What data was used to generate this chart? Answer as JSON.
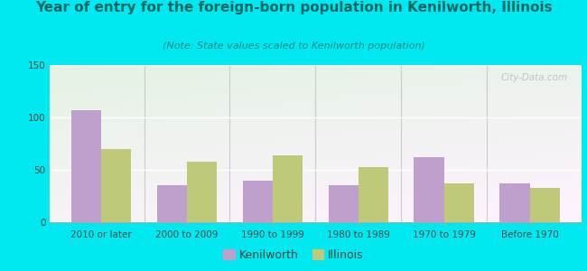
{
  "title": "Year of entry for the foreign-born population in Kenilworth, Illinois",
  "subtitle": "(Note: State values scaled to Kenilworth population)",
  "categories": [
    "2010 or later",
    "2000 to 2009",
    "1990 to 1999",
    "1980 to 1989",
    "1970 to 1979",
    "Before 1970"
  ],
  "kenilworth_values": [
    107,
    35,
    40,
    35,
    62,
    37
  ],
  "illinois_values": [
    70,
    58,
    64,
    53,
    37,
    33
  ],
  "kenilworth_color": "#bf9fcc",
  "illinois_color": "#c0c87a",
  "background_outer": "#00e8f0",
  "ylim": [
    0,
    150
  ],
  "yticks": [
    0,
    50,
    100,
    150
  ],
  "bar_width": 0.35,
  "title_fontsize": 11,
  "subtitle_fontsize": 8,
  "legend_fontsize": 9,
  "tick_fontsize": 7.5,
  "watermark": "City-Data.com"
}
